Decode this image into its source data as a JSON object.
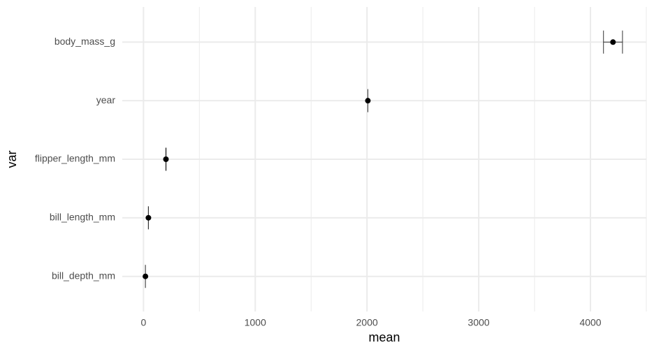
{
  "chart_data": {
    "type": "errorbar",
    "x_label": "mean",
    "y_label": "var",
    "categories": [
      "body_mass_g",
      "year",
      "flipper_length_mm",
      "bill_length_mm",
      "bill_depth_mm"
    ],
    "values": [
      4201.75,
      2008.03,
      200.9,
      43.92,
      17.15
    ],
    "errors": [
      85,
      0.09,
      1.5,
      0.6,
      0.2
    ],
    "color": "#000000",
    "xlim": [
      -190,
      4500
    ],
    "xticks": [
      0,
      1000,
      2000,
      3000,
      4000
    ],
    "xminor": [
      500,
      1500,
      2500,
      3500,
      4500
    ],
    "grid": true
  }
}
